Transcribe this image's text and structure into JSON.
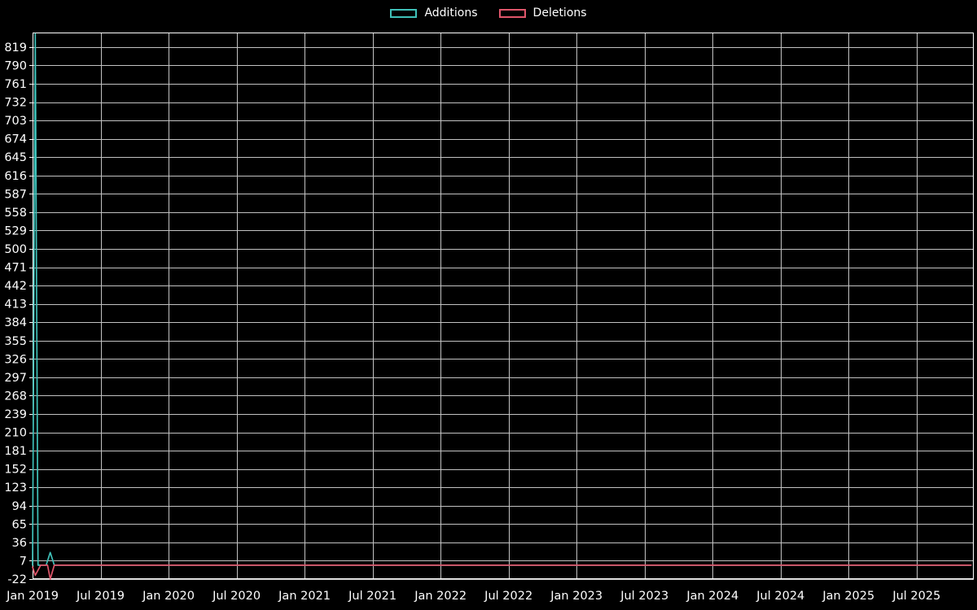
{
  "legend": {
    "items": [
      {
        "label": "Additions",
        "color": "#3fc1b9"
      },
      {
        "label": "Deletions",
        "color": "#e0566b"
      }
    ]
  },
  "chart_data": {
    "type": "line",
    "title": "",
    "xlabel": "",
    "ylabel": "",
    "background": "#000000",
    "text_color": "#ffffff",
    "grid_color": "#c2c2c2",
    "axis_color": "#ffffff",
    "legend_position": "top-center",
    "xlim": [
      2019.0,
      2025.92
    ],
    "ylim": [
      -22,
      842
    ],
    "x_tick_values": [
      2019.0,
      2019.5,
      2020.0,
      2020.5,
      2021.0,
      2021.5,
      2022.0,
      2022.5,
      2023.0,
      2023.5,
      2024.0,
      2024.5,
      2025.0,
      2025.5
    ],
    "x_tick_labels": [
      "Jan 2019",
      "Jul 2019",
      "Jan 2020",
      "Jul 2020",
      "Jan 2021",
      "Jul 2021",
      "Jan 2022",
      "Jul 2022",
      "Jan 2023",
      "Jul 2023",
      "Jan 2024",
      "Jul 2024",
      "Jan 2025",
      "Jul 2025"
    ],
    "y_ticks": [
      -22,
      7,
      36,
      65,
      94,
      123,
      152,
      181,
      210,
      239,
      268,
      297,
      326,
      355,
      384,
      413,
      442,
      471,
      500,
      529,
      558,
      587,
      616,
      645,
      674,
      703,
      732,
      761,
      790,
      819
    ],
    "series": [
      {
        "name": "Additions",
        "color": "#3fc1b9",
        "points": [
          [
            2019.0,
            0
          ],
          [
            2019.02,
            840
          ],
          [
            2019.04,
            0
          ],
          [
            2019.1,
            0
          ],
          [
            2019.13,
            20
          ],
          [
            2019.16,
            0
          ],
          [
            2025.9,
            0
          ]
        ]
      },
      {
        "name": "Deletions",
        "color": "#e0566b",
        "points": [
          [
            2019.0,
            -3
          ],
          [
            2019.02,
            -16
          ],
          [
            2019.06,
            0
          ],
          [
            2019.11,
            0
          ],
          [
            2019.13,
            -22
          ],
          [
            2019.16,
            0
          ],
          [
            2025.9,
            0
          ]
        ]
      }
    ]
  }
}
